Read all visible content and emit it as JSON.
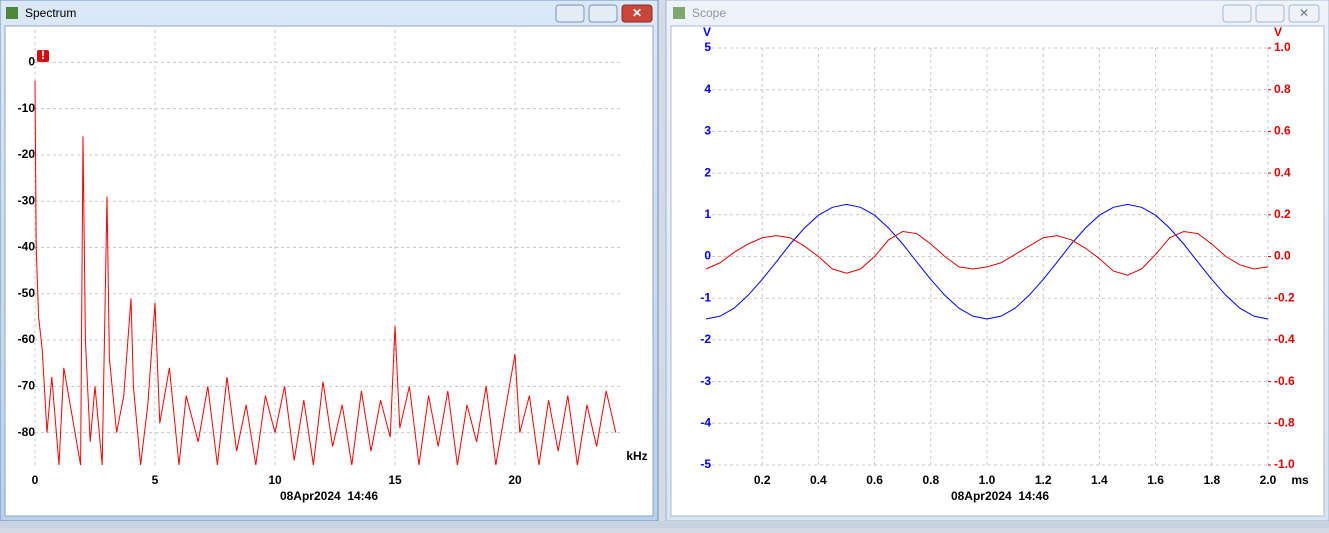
{
  "chart_data": [
    {
      "type": "line",
      "title": "Spectrum",
      "x_label": "kHz",
      "annotation": "08Apr2024  14:46",
      "color": "#ff0000",
      "grid": true,
      "xlim": [
        0,
        24.5
      ],
      "xticks": [
        0,
        5,
        10,
        15,
        20
      ],
      "ylim": [
        -87,
        7
      ],
      "yticks": [
        0,
        -10,
        -20,
        -30,
        -40,
        -50,
        -60,
        -70,
        -80
      ],
      "x": [
        0,
        0.05,
        0.15,
        0.3,
        0.5,
        0.7,
        1.0,
        1.2,
        1.5,
        1.9,
        2.0,
        2.1,
        2.3,
        2.5,
        2.8,
        3.0,
        3.1,
        3.4,
        3.7,
        4.0,
        4.1,
        4.4,
        4.7,
        5.0,
        5.2,
        5.6,
        6.0,
        6.3,
        6.8,
        7.2,
        7.6,
        8.0,
        8.4,
        8.8,
        9.2,
        9.6,
        10.0,
        10.4,
        10.8,
        11.2,
        11.6,
        12.0,
        12.4,
        12.8,
        13.2,
        13.6,
        14.0,
        14.4,
        14.8,
        15.0,
        15.2,
        15.6,
        16.0,
        16.4,
        16.8,
        17.2,
        17.6,
        18.0,
        18.4,
        18.8,
        19.2,
        19.6,
        20.0,
        20.2,
        20.6,
        21.0,
        21.4,
        21.8,
        22.2,
        22.6,
        23.0,
        23.4,
        23.8,
        24.2
      ],
      "values": [
        -4,
        -40,
        -55,
        -62,
        -80,
        -68,
        -87,
        -66,
        -75,
        -87,
        -16,
        -60,
        -82,
        -70,
        -87,
        -29,
        -64,
        -80,
        -72,
        -51,
        -70,
        -87,
        -74,
        -52,
        -78,
        -66,
        -87,
        -72,
        -82,
        -70,
        -87,
        -68,
        -84,
        -74,
        -87,
        -72,
        -80,
        -70,
        -86,
        -73,
        -87,
        -69,
        -83,
        -74,
        -87,
        -71,
        -84,
        -73,
        -81,
        -57,
        -79,
        -70,
        -87,
        -72,
        -83,
        -71,
        -87,
        -74,
        -82,
        -70,
        -87,
        -75,
        -63,
        -80,
        -72,
        -87,
        -73,
        -84,
        -72,
        -87,
        -74,
        -83,
        -71,
        -80
      ]
    },
    {
      "type": "line",
      "title": "Scope",
      "x_label": "ms",
      "y_label": "V",
      "y2_label": "V",
      "annotation": "08Apr2024  14:46",
      "grid": true,
      "xlim": [
        0,
        2.0
      ],
      "xticks": [
        0.2,
        0.4,
        0.6,
        0.8,
        {
          "value": 1.0,
          "label": "1.0"
        },
        1.2,
        1.4,
        1.6,
        1.8,
        {
          "value": 2.0,
          "label": "2.0"
        }
      ],
      "ylim": [
        -5,
        5
      ],
      "yticks": [
        5,
        4,
        3,
        2,
        1,
        0,
        -1,
        -2,
        -3,
        -4,
        -5
      ],
      "y2lim": [
        -1,
        1
      ],
      "y2ticks": [
        {
          "value": 1.0,
          "label": "1.0"
        },
        0.8,
        0.6,
        0.4,
        0.2,
        {
          "value": 0.0,
          "label": "0.0"
        },
        -0.2,
        -0.4,
        -0.6,
        -0.8,
        {
          "value": -1.0,
          "label": "-1.0"
        }
      ],
      "x": [
        0,
        0.05,
        0.1,
        0.15,
        0.2,
        0.25,
        0.3,
        0.35,
        0.4,
        0.45,
        0.5,
        0.55,
        0.6,
        0.65,
        0.7,
        0.75,
        0.8,
        0.85,
        0.9,
        0.95,
        1.0,
        1.05,
        1.1,
        1.15,
        1.2,
        1.25,
        1.3,
        1.35,
        1.4,
        1.45,
        1.5,
        1.55,
        1.6,
        1.65,
        1.7,
        1.75,
        1.8,
        1.85,
        1.9,
        1.95,
        2.0
      ],
      "series": [
        {
          "color": "#0000ff",
          "values": [
            -1.5,
            -1.43,
            -1.24,
            -0.93,
            -0.55,
            -0.13,
            0.3,
            0.68,
            0.99,
            1.18,
            1.25,
            1.18,
            0.99,
            0.68,
            0.3,
            -0.13,
            -0.55,
            -0.93,
            -1.24,
            -1.43,
            -1.5,
            -1.43,
            -1.24,
            -0.93,
            -0.55,
            -0.13,
            0.3,
            0.68,
            0.99,
            1.18,
            1.25,
            1.18,
            0.99,
            0.68,
            0.3,
            -0.13,
            -0.55,
            -0.93,
            -1.24,
            -1.43,
            -1.5
          ]
        },
        {
          "color": "#e00000",
          "axis": "y2",
          "values": [
            -0.06,
            -0.03,
            0.02,
            0.06,
            0.09,
            0.1,
            0.09,
            0.05,
            0.0,
            -0.06,
            -0.08,
            -0.06,
            0.0,
            0.08,
            0.12,
            0.11,
            0.06,
            0.0,
            -0.05,
            -0.06,
            -0.05,
            -0.03,
            0.01,
            0.05,
            0.09,
            0.1,
            0.08,
            0.04,
            -0.01,
            -0.07,
            -0.09,
            -0.06,
            0.01,
            0.09,
            0.12,
            0.11,
            0.06,
            0.0,
            -0.04,
            -0.06,
            -0.05
          ]
        }
      ]
    }
  ]
}
